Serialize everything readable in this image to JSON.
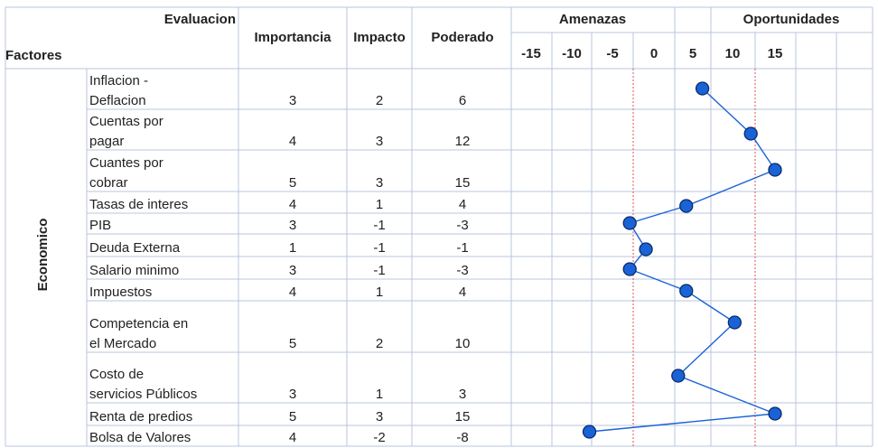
{
  "table": {
    "header": {
      "evaluacion": "Evaluacion",
      "factores": "Factores",
      "importancia": "Importancia",
      "impacto": "Impacto",
      "poderado": "Poderado",
      "amenazas": "Amenazas",
      "oportunidades": "Oportunidades"
    },
    "group_label": "Economico",
    "scale_labels": [
      "-15",
      "-10",
      "-5",
      "0",
      "5",
      "10",
      "15"
    ],
    "rows": [
      {
        "lines": [
          "Inflacion -",
          "Deflacion"
        ],
        "importancia": "3",
        "impacto": "2",
        "poderado": "6"
      },
      {
        "lines": [
          "Cuentas por",
          "pagar"
        ],
        "importancia": "4",
        "impacto": "3",
        "poderado": "12"
      },
      {
        "lines": [
          "Cuantes por",
          "cobrar"
        ],
        "importancia": "5",
        "impacto": "3",
        "poderado": "15"
      },
      {
        "lines": [
          "Tasas de interes"
        ],
        "importancia": "4",
        "impacto": "1",
        "poderado": "4"
      },
      {
        "lines": [
          "PIB"
        ],
        "importancia": "3",
        "impacto": "-1",
        "poderado": "-3"
      },
      {
        "lines": [
          "Deuda Externa"
        ],
        "importancia": "1",
        "impacto": "-1",
        "poderado": "-1"
      },
      {
        "lines": [
          "Salario minimo"
        ],
        "importancia": "3",
        "impacto": "-1",
        "poderado": "-3"
      },
      {
        "lines": [
          "Impuestos"
        ],
        "importancia": "4",
        "impacto": "1",
        "poderado": "4"
      },
      {
        "lines": [
          "Competencia en",
          "el Mercado"
        ],
        "importancia": "5",
        "impacto": "2",
        "poderado": "10"
      },
      {
        "lines": [
          "",
          "Costo de",
          "servicios Públicos"
        ],
        "importancia": "3",
        "impacto": "1",
        "poderado": "3"
      },
      {
        "lines": [
          "Renta de predios"
        ],
        "importancia": "5",
        "impacto": "3",
        "poderado": "15"
      },
      {
        "lines": [
          "Bolsa de Valores"
        ],
        "importancia": "4",
        "impacto": "-2",
        "poderado": "-8"
      }
    ]
  },
  "chart_data": {
    "type": "line",
    "xlim": [
      -15,
      15
    ],
    "x_ticks": [
      -15,
      -10,
      -5,
      0,
      5,
      10,
      15
    ],
    "categories": [
      "Inflacion - Deflacion",
      "Cuentas por pagar",
      "Cuantes por cobrar",
      "Tasas de interes",
      "PIB",
      "Deuda Externa",
      "Salario minimo",
      "Impuestos",
      "Competencia en el Mercado",
      "Costo de servicios Públicos",
      "Renta de predios",
      "Bolsa de Valores"
    ],
    "values": [
      6,
      12,
      15,
      4,
      -3,
      -1,
      -3,
      4,
      10,
      3,
      15,
      -8
    ],
    "colors": {
      "line": "#1a63d6",
      "marker": "#1a63d6",
      "marker_stroke": "#0a2a6b",
      "threshold_line": "#e05050",
      "grid": "#b8c4dc"
    }
  }
}
